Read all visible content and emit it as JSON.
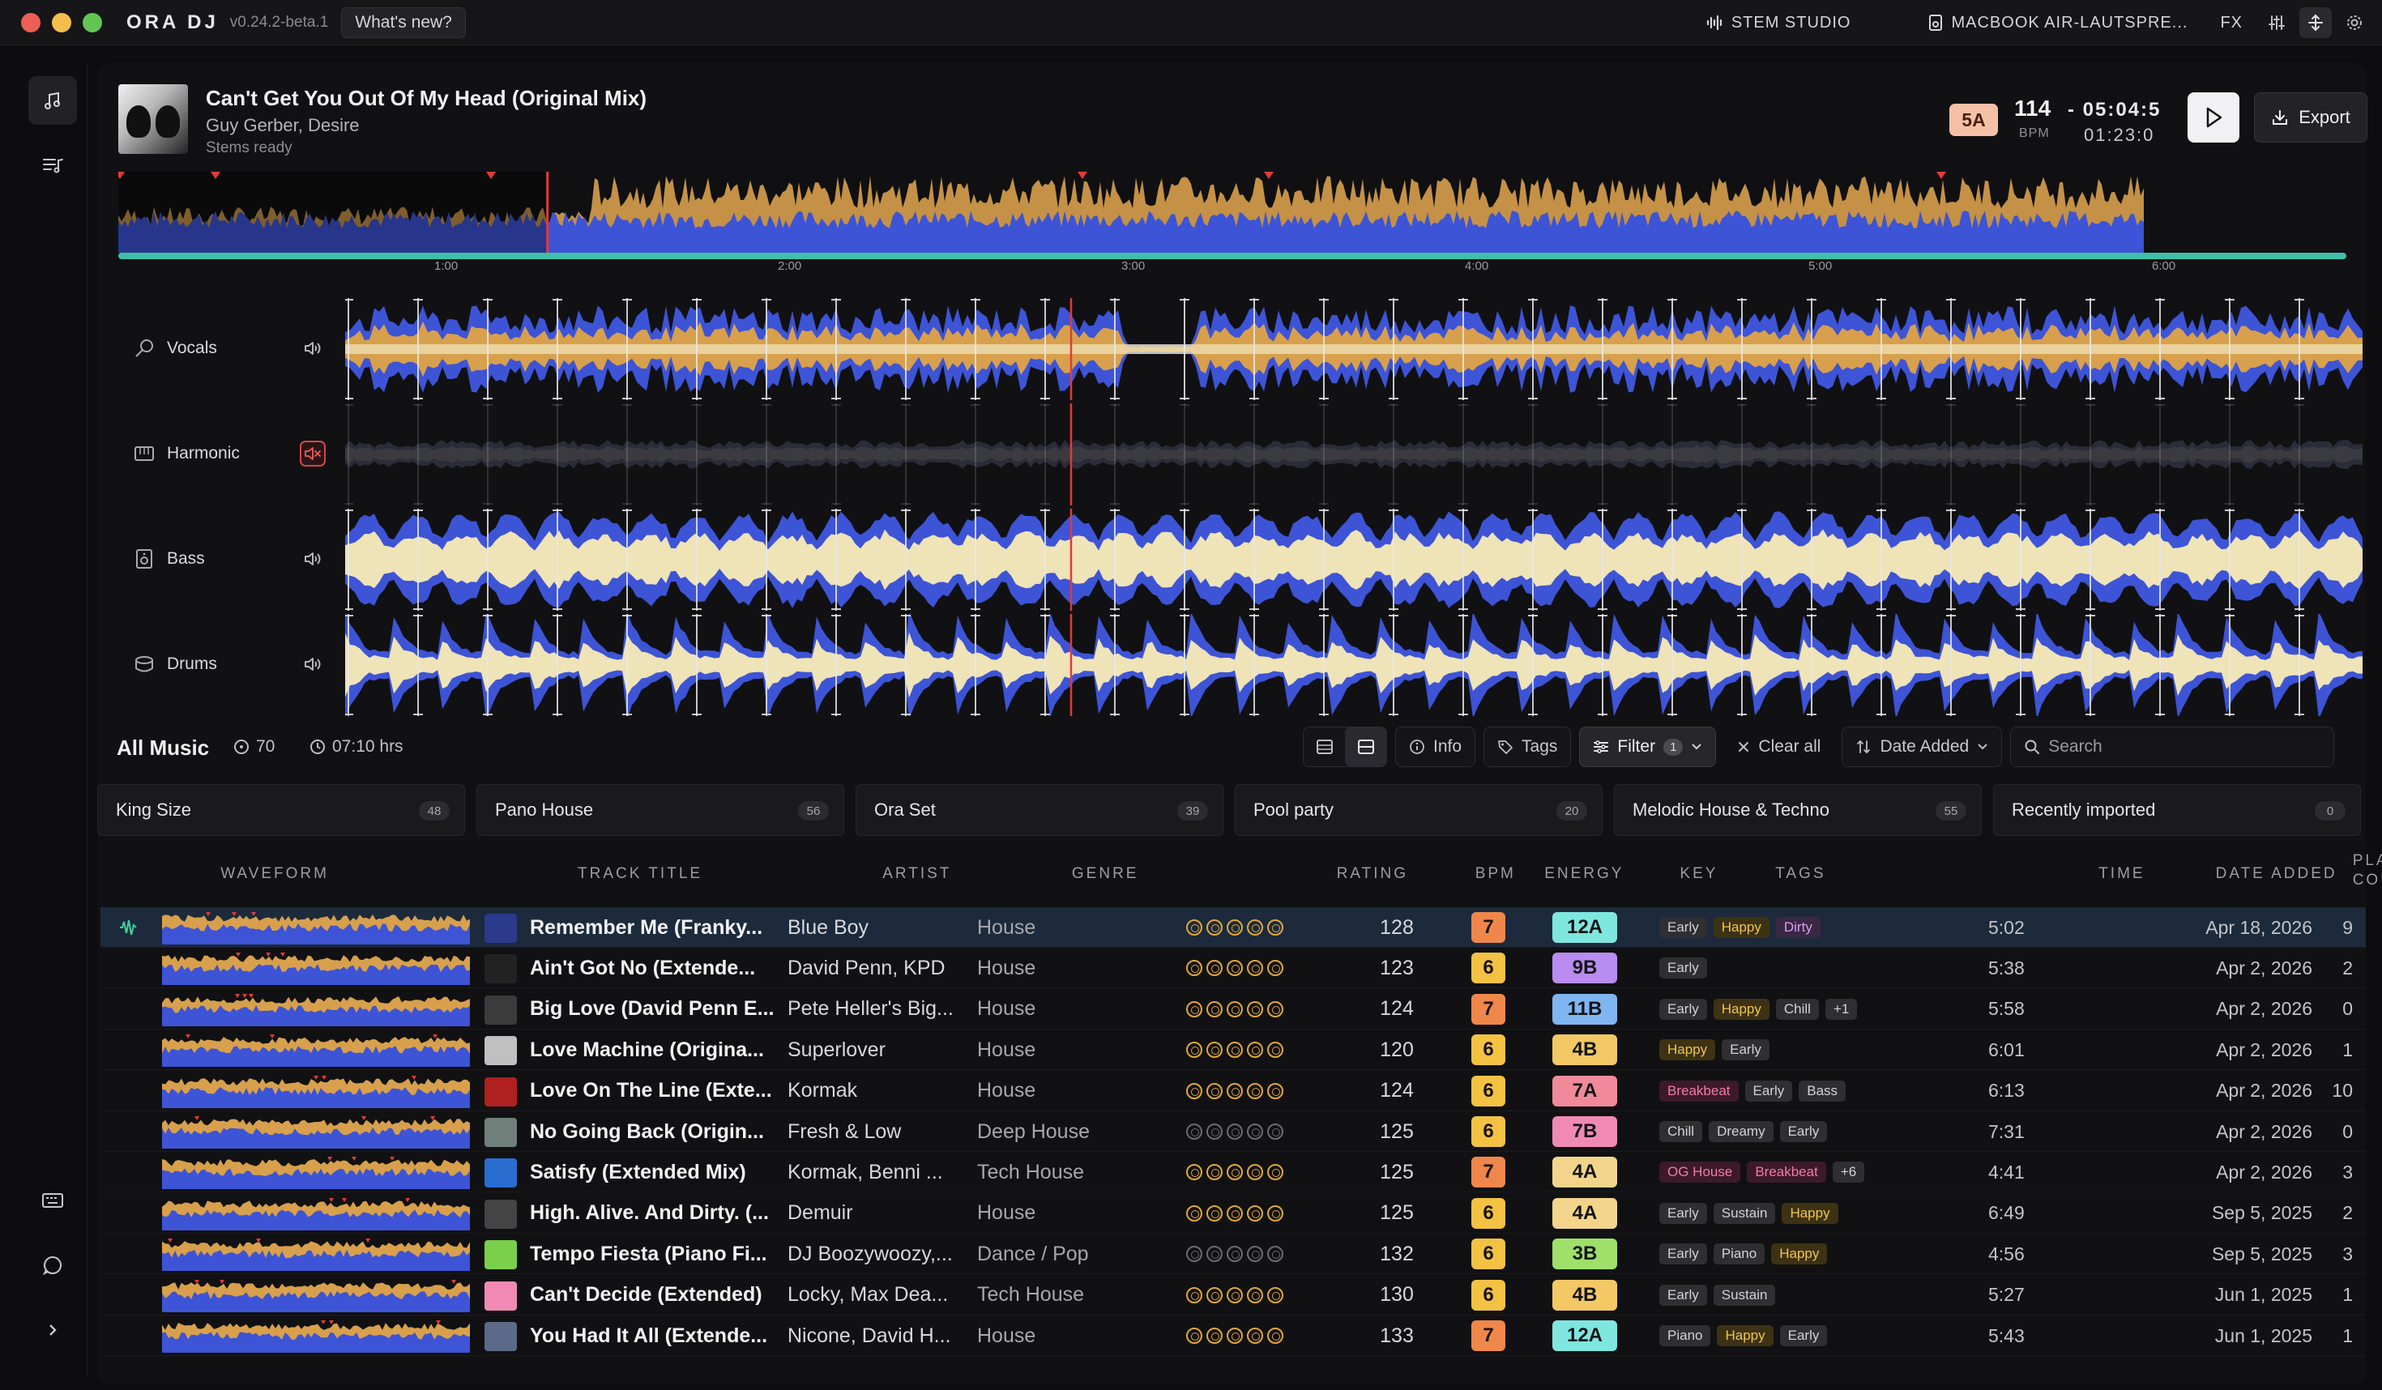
{
  "titlebar": {
    "app_name": "ORA DJ",
    "version": "v0.24.2-beta.1",
    "whats_new": "What's new?",
    "stem_studio": "STEM STUDIO",
    "output_device": "MACBOOK AIR-LAUTSPRE...",
    "fx": "FX"
  },
  "now_playing": {
    "title": "Can't Get You Out Of My Head (Original Mix)",
    "artist": "Guy Gerber, Desire",
    "status": "Stems ready",
    "key": "5A",
    "bpm": "114",
    "bpm_label": "BPM",
    "time_remaining": "- 05:04:5",
    "time_elapsed": "01:23:0",
    "export_label": "Export",
    "progress_fraction": 0.214
  },
  "timeline": {
    "labels": [
      "1:00",
      "2:00",
      "3:00",
      "4:00",
      "5:00",
      "6:00"
    ]
  },
  "stems": [
    {
      "name": "Vocals",
      "icon": "microphone-icon",
      "muted": false
    },
    {
      "name": "Harmonic",
      "icon": "piano-icon",
      "muted": true
    },
    {
      "name": "Bass",
      "icon": "speaker-box-icon",
      "muted": false
    },
    {
      "name": "Drums",
      "icon": "drum-icon",
      "muted": false
    }
  ],
  "library": {
    "title": "All Music",
    "track_count": "70",
    "duration": "07:10 hrs",
    "info": "Info",
    "tags": "Tags",
    "filter": "Filter",
    "filter_count": "1",
    "clear_all": "Clear all",
    "sort": "Date Added",
    "search_placeholder": "Search"
  },
  "playlists": [
    {
      "name": "King Size",
      "count": "48"
    },
    {
      "name": "Pano House",
      "count": "56"
    },
    {
      "name": "Ora Set",
      "count": "39"
    },
    {
      "name": "Pool party",
      "count": "20"
    },
    {
      "name": "Melodic House & Techno",
      "count": "55"
    },
    {
      "name": "Recently imported",
      "count": "0"
    }
  ],
  "columns": {
    "waveform": "WAVEFORM",
    "title": "TRACK TITLE",
    "artist": "ARTIST",
    "genre": "GENRE",
    "rating": "RATING",
    "bpm": "BPM",
    "energy": "ENERGY",
    "key": "KEY",
    "tags": "TAGS",
    "time": "TIME",
    "date_added": "DATE ADDED",
    "play_count_1": "PLAY",
    "play_count_2": "COUNT"
  },
  "tracks": [
    {
      "title": "Remember Me (Franky...",
      "artist": "Blue Boy",
      "genre": "House",
      "rating": 5,
      "bpm": "128",
      "energy": "7",
      "key": "12A",
      "tags": [
        "Early",
        "Happy",
        "Dirty"
      ],
      "time": "5:02",
      "date": "Apr 18, 2026",
      "plays": "9"
    },
    {
      "title": "Ain't Got No (Extende...",
      "artist": "David Penn, KPD",
      "genre": "House",
      "rating": 5,
      "bpm": "123",
      "energy": "6",
      "key": "9B",
      "tags": [
        "Early"
      ],
      "time": "5:38",
      "date": "Apr 2, 2026",
      "plays": "2"
    },
    {
      "title": "Big Love (David Penn E...",
      "artist": "Pete Heller's Big...",
      "genre": "House",
      "rating": 5,
      "bpm": "124",
      "energy": "7",
      "key": "11B",
      "tags": [
        "Early",
        "Happy",
        "Chill",
        "+1"
      ],
      "time": "5:58",
      "date": "Apr 2, 2026",
      "plays": "0"
    },
    {
      "title": "Love Machine (Origina...",
      "artist": "Superlover",
      "genre": "House",
      "rating": 5,
      "bpm": "120",
      "energy": "6",
      "key": "4B",
      "tags": [
        "Happy",
        "Early"
      ],
      "time": "6:01",
      "date": "Apr 2, 2026",
      "plays": "1"
    },
    {
      "title": "Love On The Line (Exte...",
      "artist": "Kormak",
      "genre": "House",
      "rating": 5,
      "bpm": "124",
      "energy": "6",
      "key": "7A",
      "tags": [
        "Breakbeat",
        "Early",
        "Bass"
      ],
      "time": "6:13",
      "date": "Apr 2, 2026",
      "plays": "10"
    },
    {
      "title": "No Going Back (Origin...",
      "artist": "Fresh & Low",
      "genre": "Deep House",
      "rating": 0,
      "bpm": "125",
      "energy": "6",
      "key": "7B",
      "tags": [
        "Chill",
        "Dreamy",
        "Early"
      ],
      "time": "7:31",
      "date": "Apr 2, 2026",
      "plays": "0"
    },
    {
      "title": "Satisfy (Extended Mix)",
      "artist": "Kormak, Benni ...",
      "genre": "Tech House",
      "rating": 5,
      "bpm": "125",
      "energy": "7",
      "key": "4A",
      "tags": [
        "OG House",
        "Breakbeat",
        "+6"
      ],
      "time": "4:41",
      "date": "Apr 2, 2026",
      "plays": "3"
    },
    {
      "title": "High. Alive. And Dirty. (...",
      "artist": "Demuir",
      "genre": "House",
      "rating": 5,
      "bpm": "125",
      "energy": "6",
      "key": "4A",
      "tags": [
        "Early",
        "Sustain",
        "Happy"
      ],
      "time": "6:49",
      "date": "Sep 5, 2025",
      "plays": "2"
    },
    {
      "title": "Tempo Fiesta (Piano Fi...",
      "artist": "DJ Boozywoozy,...",
      "genre": "Dance / Pop",
      "rating": 0,
      "bpm": "132",
      "energy": "6",
      "key": "3B",
      "tags": [
        "Early",
        "Piano",
        "Happy"
      ],
      "time": "4:56",
      "date": "Sep 5, 2025",
      "plays": "3"
    },
    {
      "title": "Can't Decide (Extended)",
      "artist": "Locky, Max Dea...",
      "genre": "Tech House",
      "rating": 5,
      "bpm": "130",
      "energy": "6",
      "key": "4B",
      "tags": [
        "Early",
        "Sustain"
      ],
      "time": "5:27",
      "date": "Jun 1, 2025",
      "plays": "1"
    },
    {
      "title": "You Had It All (Extende...",
      "artist": "Nicone, David H...",
      "genre": "House",
      "rating": 5,
      "bpm": "133",
      "energy": "7",
      "key": "12A",
      "tags": [
        "Piano",
        "Happy",
        "Early"
      ],
      "time": "5:43",
      "date": "Jun 1, 2025",
      "plays": "1"
    }
  ],
  "colors": {
    "wave_blue": "#3d54d6",
    "wave_orange": "#d8a04c",
    "wave_cream": "#efe3b8",
    "playhead": "#e13a3a",
    "progress": "#3fbfa8",
    "energy_7": "#f0874a",
    "energy_6": "#f3c243",
    "key_12A": "#7fe6e0",
    "key_9B": "#b88cf0",
    "key_11B": "#7fb6f2",
    "key_4B": "#f3c865",
    "key_7A": "#f08a9a",
    "key_7B": "#f08ab4",
    "key_4A": "#f2d58a",
    "key_3B": "#9ee06a"
  }
}
